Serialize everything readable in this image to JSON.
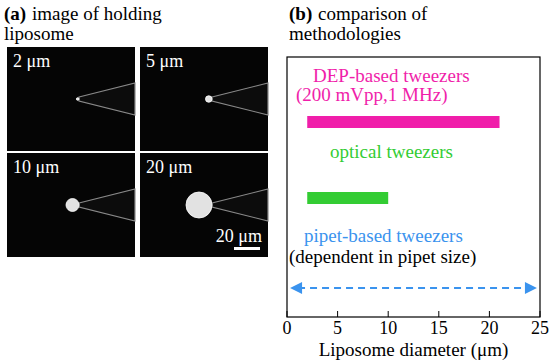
{
  "panel_a": {
    "label": "(a)",
    "title_lines": [
      "image of holding",
      "liposome"
    ],
    "images": [
      {
        "size": 2,
        "label": "2 μm"
      },
      {
        "size": 5,
        "label": "5 μm"
      },
      {
        "size": 10,
        "label": "10 μm"
      },
      {
        "size": 20,
        "label": "20 μm"
      }
    ],
    "scale_bar": {
      "size": 20,
      "label": "20 μm"
    }
  },
  "chart_data": {
    "type": "range",
    "title_label": "(b)",
    "title_lines": [
      "comparison of",
      "methodologies"
    ],
    "series": [
      {
        "name": "DEP-based tweezers",
        "condition": "(200 mVpp,1 MHz)",
        "color": "#f01eaa",
        "values": [
          2,
          21
        ]
      },
      {
        "name": "optical tweezers",
        "color": "#33cc33",
        "values": [
          2,
          10
        ]
      },
      {
        "name": "pipet-based tweezers",
        "condition": "(dependent in pipet size)",
        "color": "#3a93ee",
        "values": [
          0.3,
          24.7
        ],
        "line_style": "dashed",
        "marker": "arrow"
      }
    ],
    "xlim": [
      0,
      25
    ],
    "xticks": [
      0,
      5,
      10,
      15,
      20,
      25
    ],
    "xlabel": "Liposome diameter (μm)"
  }
}
